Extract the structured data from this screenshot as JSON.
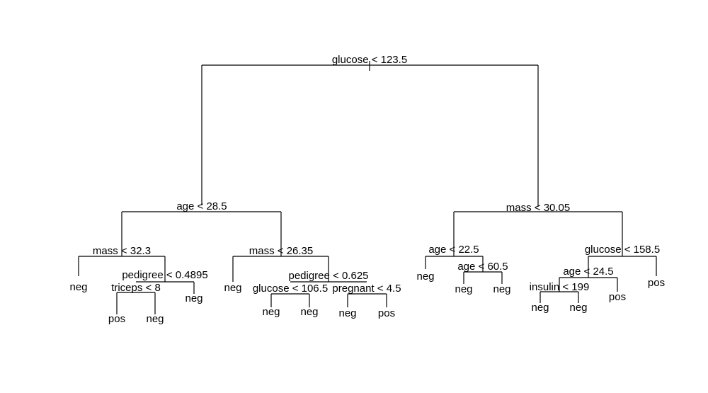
{
  "tree": {
    "nodes": [
      {
        "id": "root",
        "label": "glucose < 123.5"
      },
      {
        "id": "L",
        "label": "age < 28.5"
      },
      {
        "id": "R",
        "label": "mass < 30.05"
      },
      {
        "id": "LL",
        "label": "mass < 32.3"
      },
      {
        "id": "LLL",
        "label": "neg"
      },
      {
        "id": "LLR",
        "label": "pedigree < 0.4895"
      },
      {
        "id": "LLRL",
        "label": "triceps < 8"
      },
      {
        "id": "LLRLL",
        "label": "pos"
      },
      {
        "id": "LLRLR",
        "label": "neg"
      },
      {
        "id": "LLRR",
        "label": "neg"
      },
      {
        "id": "LR",
        "label": "mass < 26.35"
      },
      {
        "id": "LRL",
        "label": "neg"
      },
      {
        "id": "LRR",
        "label": "pedigree < 0.625"
      },
      {
        "id": "LRRL",
        "label": "glucose < 106.5"
      },
      {
        "id": "LRRLL",
        "label": "neg"
      },
      {
        "id": "LRRLR",
        "label": "neg"
      },
      {
        "id": "LRRR",
        "label": "pregnant < 4.5"
      },
      {
        "id": "LRRRL",
        "label": "neg"
      },
      {
        "id": "LRRRR",
        "label": "pos"
      },
      {
        "id": "RL",
        "label": "age < 22.5"
      },
      {
        "id": "RLL",
        "label": "neg"
      },
      {
        "id": "RLR",
        "label": "age < 60.5"
      },
      {
        "id": "RLRL",
        "label": "neg"
      },
      {
        "id": "RLRR",
        "label": "neg"
      },
      {
        "id": "RR",
        "label": "glucose < 158.5"
      },
      {
        "id": "RRL",
        "label": "age < 24.5"
      },
      {
        "id": "RRLL",
        "label": "insulin < 199"
      },
      {
        "id": "RRLLL",
        "label": "neg"
      },
      {
        "id": "RRLLR",
        "label": "neg"
      },
      {
        "id": "RRLR",
        "label": "pos"
      },
      {
        "id": "RRR",
        "label": "pos"
      }
    ]
  }
}
